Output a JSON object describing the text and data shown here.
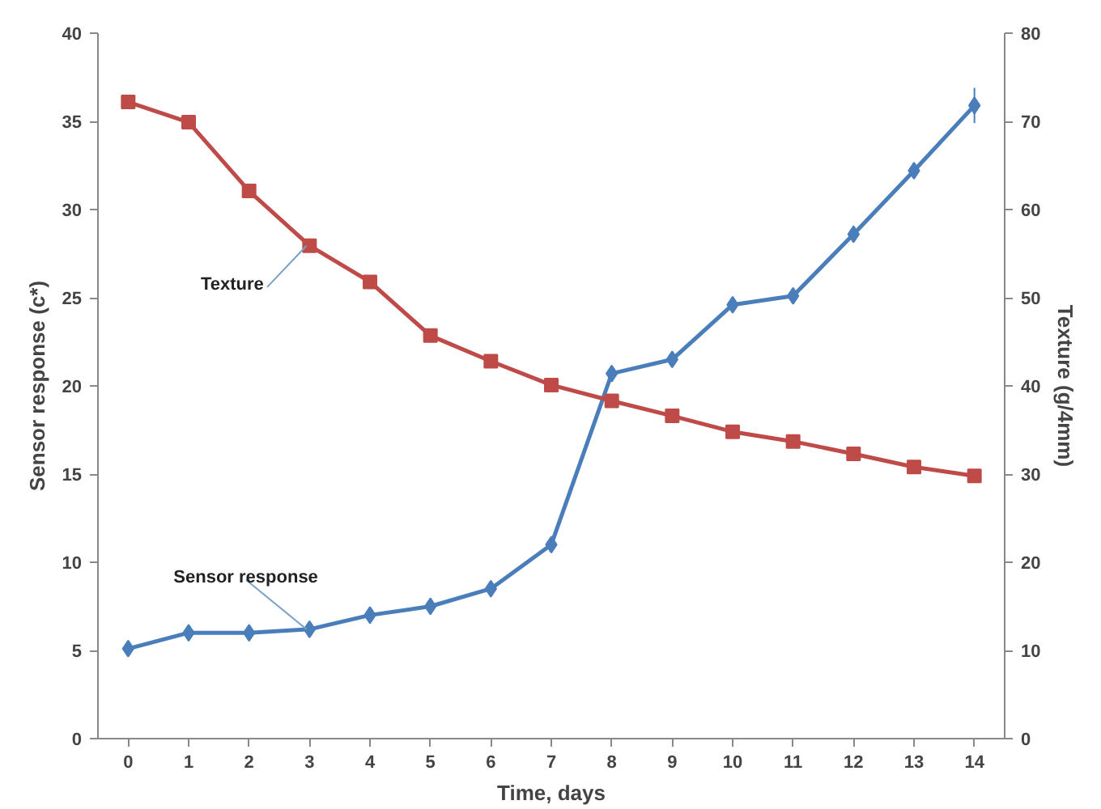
{
  "chart_data": {
    "type": "line",
    "xlabel": "Time, days",
    "ylabel": "Sensor response (c*)",
    "y2label": "Texture (g/4mm)",
    "x": [
      0,
      1,
      2,
      3,
      4,
      5,
      6,
      7,
      8,
      9,
      10,
      11,
      12,
      13,
      14
    ],
    "xlim": [
      -0.5,
      14.5
    ],
    "xticks": [
      0,
      1,
      2,
      3,
      4,
      5,
      6,
      7,
      8,
      9,
      10,
      11,
      12,
      13,
      14
    ],
    "ylim": [
      0,
      40
    ],
    "yticks": [
      0,
      5,
      10,
      15,
      20,
      25,
      30,
      35,
      40
    ],
    "y2lim": [
      0,
      80
    ],
    "y2ticks": [
      0,
      10,
      20,
      30,
      40,
      50,
      60,
      70,
      80
    ],
    "grid": false,
    "legend": false,
    "line_style": "solid",
    "series": [
      {
        "name": "Sensor response",
        "color": "#4a7ebb",
        "marker": "diamond",
        "values": [
          5.1,
          6.0,
          6.0,
          6.2,
          7.0,
          7.5,
          8.5,
          11.0,
          20.7,
          21.5,
          24.6,
          25.1,
          28.6,
          32.2,
          35.9
        ],
        "errors": [
          null,
          null,
          null,
          null,
          null,
          null,
          null,
          null,
          null,
          null,
          null,
          null,
          null,
          null,
          1.0
        ]
      },
      {
        "name": "Texture",
        "color": "#be4b48",
        "marker": "square",
        "axis": "y2",
        "values": [
          72.2,
          69.9,
          62.1,
          55.9,
          51.8,
          45.7,
          42.8,
          40.1,
          38.3,
          36.6,
          34.8,
          33.7,
          32.3,
          30.8,
          29.8
        ]
      }
    ]
  }
}
